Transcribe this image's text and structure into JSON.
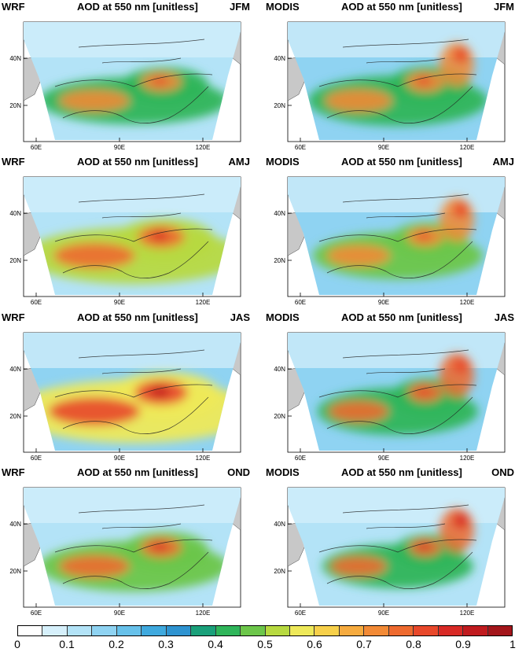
{
  "title": "AOD at 550 nm [unitless]",
  "panels": [
    {
      "model": "WRF",
      "season": "JFM"
    },
    {
      "model": "MODIS",
      "season": "JFM"
    },
    {
      "model": "WRF",
      "season": "AMJ"
    },
    {
      "model": "MODIS",
      "season": "AMJ"
    },
    {
      "model": "WRF",
      "season": "JAS"
    },
    {
      "model": "MODIS",
      "season": "JAS"
    },
    {
      "model": "WRF",
      "season": "OND"
    },
    {
      "model": "MODIS",
      "season": "OND"
    }
  ],
  "axes": {
    "lon_ticks": [
      "60E",
      "90E",
      "120E"
    ],
    "lat_ticks": [
      "40N",
      "20N"
    ]
  },
  "colorbar": {
    "labels": [
      "0",
      "0.1",
      "0.2",
      "0.3",
      "0.4",
      "0.5",
      "0.6",
      "0.7",
      "0.8",
      "0.9",
      "1"
    ],
    "colors": [
      "#ffffff",
      "#d6f0fb",
      "#b3e3f7",
      "#8fd3f2",
      "#67c1ea",
      "#3fa9de",
      "#2e93d0",
      "#1aa07a",
      "#2fb55a",
      "#6cc64a",
      "#b7d940",
      "#eee95a",
      "#f7d04a",
      "#f6ab3f",
      "#f28a36",
      "#ee6a2f",
      "#e8482b",
      "#d82a26",
      "#c01b1f",
      "#a3161b"
    ]
  }
}
